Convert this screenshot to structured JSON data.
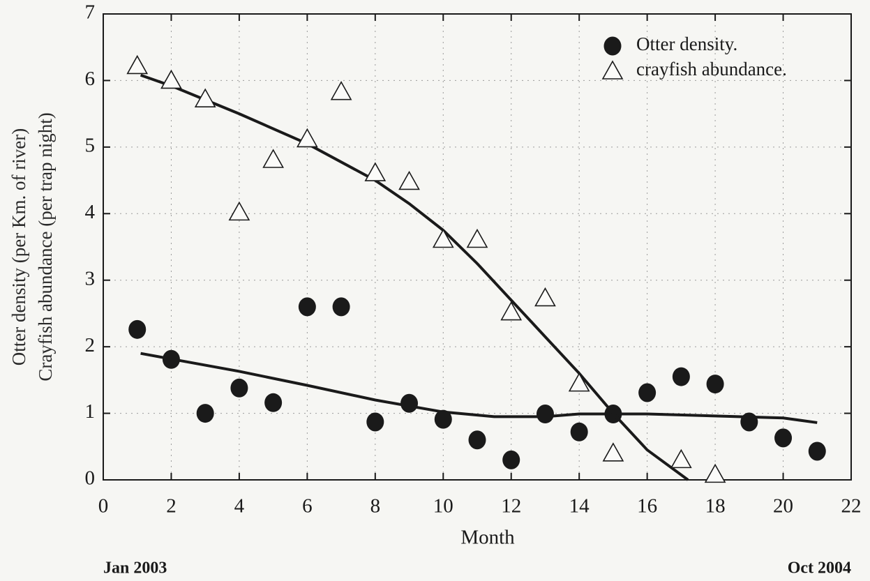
{
  "chart_data": {
    "type": "scatter",
    "x_label": "Month",
    "y_label": [
      "Otter density (per Km. of river)",
      "Crayfish abundance (per trap night)"
    ],
    "x_notes": [
      "Jan 2003",
      "Oct 2004"
    ],
    "xlim": [
      0,
      22
    ],
    "xticks": [
      0,
      2,
      4,
      6,
      8,
      10,
      12,
      14,
      16,
      18,
      20,
      22
    ],
    "ylim": [
      0,
      7
    ],
    "yticks": [
      0,
      1,
      2,
      3,
      4,
      5,
      6,
      7
    ],
    "grid": true,
    "legend": "top-right",
    "series": [
      {
        "name": "Otter density.",
        "color": "#1a1a1a",
        "marker": "circle",
        "x": [
          1,
          2,
          3,
          4,
          5,
          6,
          7,
          8,
          9,
          10,
          11,
          12,
          13,
          14,
          15,
          16,
          17,
          18,
          19,
          20,
          21
        ],
        "values": [
          2.26,
          1.81,
          1.0,
          1.38,
          1.16,
          2.6,
          2.6,
          0.87,
          1.15,
          0.91,
          0.6,
          0.3,
          0.99,
          0.72,
          0.99,
          1.31,
          1.55,
          1.44,
          0.87,
          0.63,
          0.43
        ],
        "fit": {
          "x": [
            1.1,
            4,
            6,
            8,
            10,
            11.5,
            12,
            13,
            14,
            16,
            18,
            20,
            21
          ],
          "values": [
            1.9,
            1.63,
            1.42,
            1.2,
            1.02,
            0.95,
            0.95,
            0.95,
            0.99,
            0.99,
            0.96,
            0.93,
            0.86
          ]
        }
      },
      {
        "name": "crayfish abundance.",
        "color": "#1a1a1a",
        "marker": "triangle",
        "x": [
          1,
          2,
          3,
          4,
          5,
          6,
          7,
          8,
          9,
          10,
          11,
          12,
          13,
          14,
          15,
          17,
          18
        ],
        "values": [
          6.22,
          6.0,
          5.72,
          4.02,
          4.81,
          5.12,
          5.83,
          4.61,
          4.48,
          3.61,
          3.61,
          2.52,
          2.73,
          1.45,
          0.4,
          0.3,
          0.08
        ],
        "fit": {
          "x": [
            1.1,
            2,
            4,
            6,
            8,
            9,
            10,
            11,
            12,
            13,
            14,
            15,
            16,
            17.2
          ],
          "values": [
            6.08,
            5.92,
            5.5,
            5.05,
            4.5,
            4.15,
            3.75,
            3.25,
            2.7,
            2.15,
            1.6,
            1.0,
            0.45,
            0
          ]
        }
      }
    ]
  }
}
